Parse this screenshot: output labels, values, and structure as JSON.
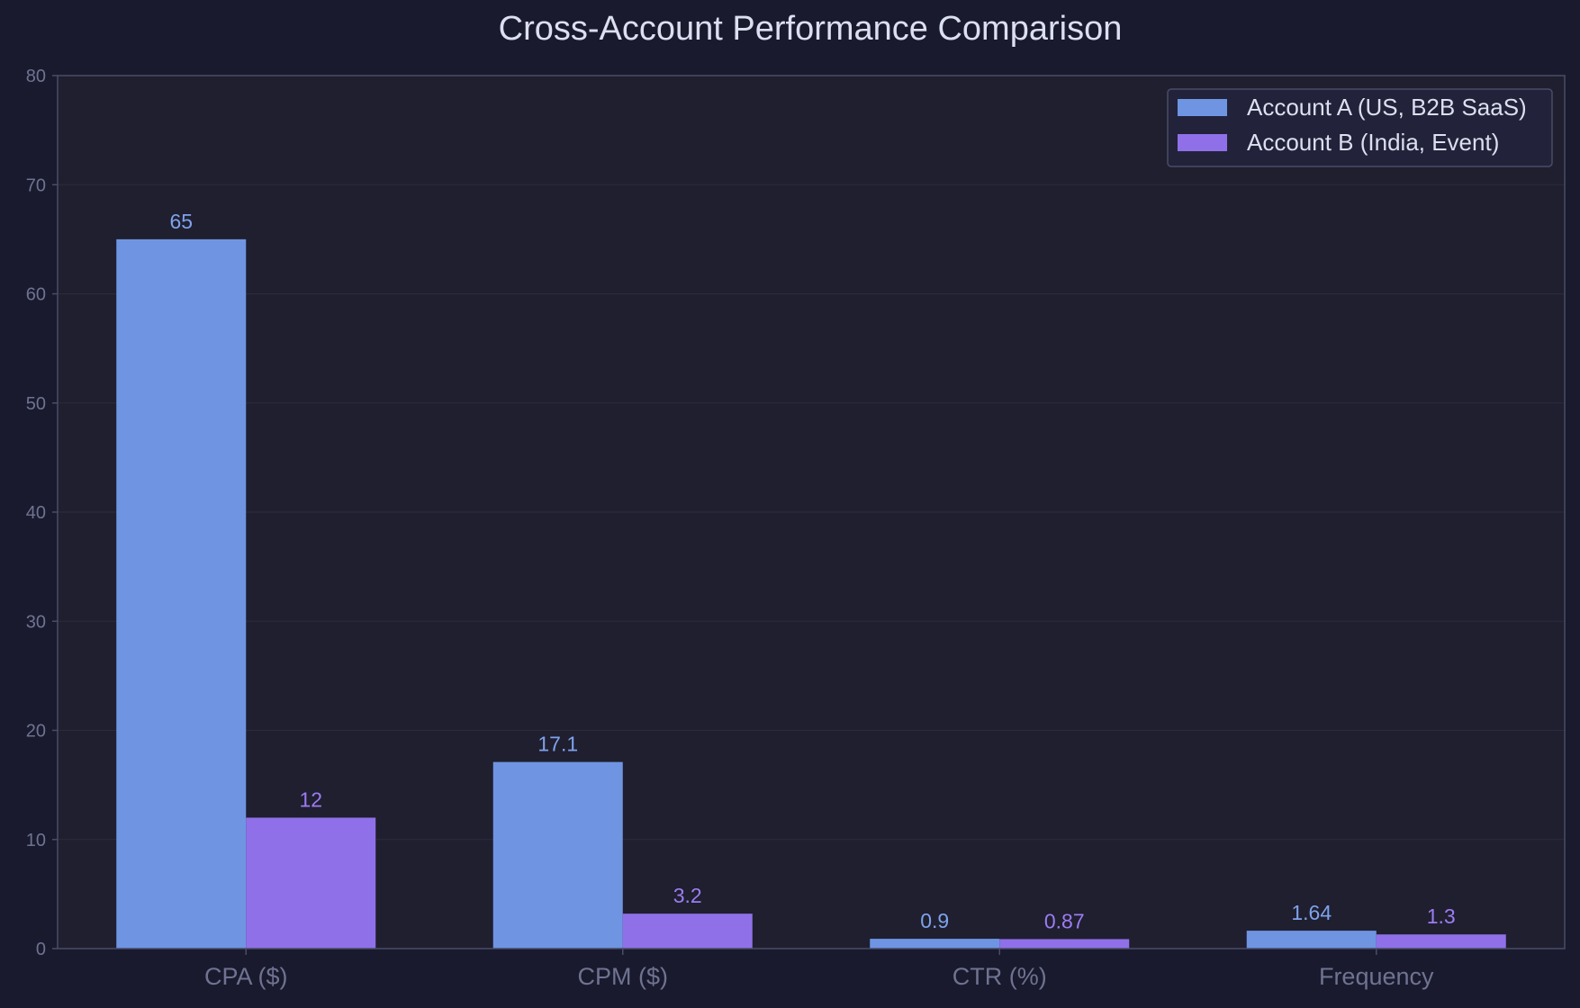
{
  "chart_data": {
    "type": "bar",
    "title": "Cross-Account Performance Comparison",
    "xlabel": "",
    "ylabel": "",
    "categories": [
      "CPA ($)",
      "CPM ($)",
      "CTR (%)",
      "Frequency"
    ],
    "series": [
      {
        "name": "Account A (US, B2B SaaS)",
        "values": [
          65,
          17.1,
          0.9,
          1.64
        ],
        "labels": [
          "65",
          "17.1",
          "0.9",
          "1.64"
        ],
        "color": "#6f95e2"
      },
      {
        "name": "Account B (India, Event)",
        "values": [
          12,
          3.2,
          0.87,
          1.3
        ],
        "labels": [
          "12",
          "3.2",
          "0.87",
          "1.3"
        ],
        "color": "#9070e8"
      }
    ],
    "ylim": [
      0,
      80
    ],
    "yticks": [
      0,
      10,
      20,
      30,
      40,
      50,
      60,
      70,
      80
    ],
    "grid": true,
    "legend_position": "top-right"
  },
  "colors": {
    "background": "#191a2e",
    "plot_background": "#1f1f2f",
    "axis": "#4a4c66",
    "grid": "#2b2c40",
    "text": "#dcdff0",
    "muted_text": "#6f7391",
    "label_a": "#7fa2ec",
    "label_b": "#9d7cf2"
  }
}
